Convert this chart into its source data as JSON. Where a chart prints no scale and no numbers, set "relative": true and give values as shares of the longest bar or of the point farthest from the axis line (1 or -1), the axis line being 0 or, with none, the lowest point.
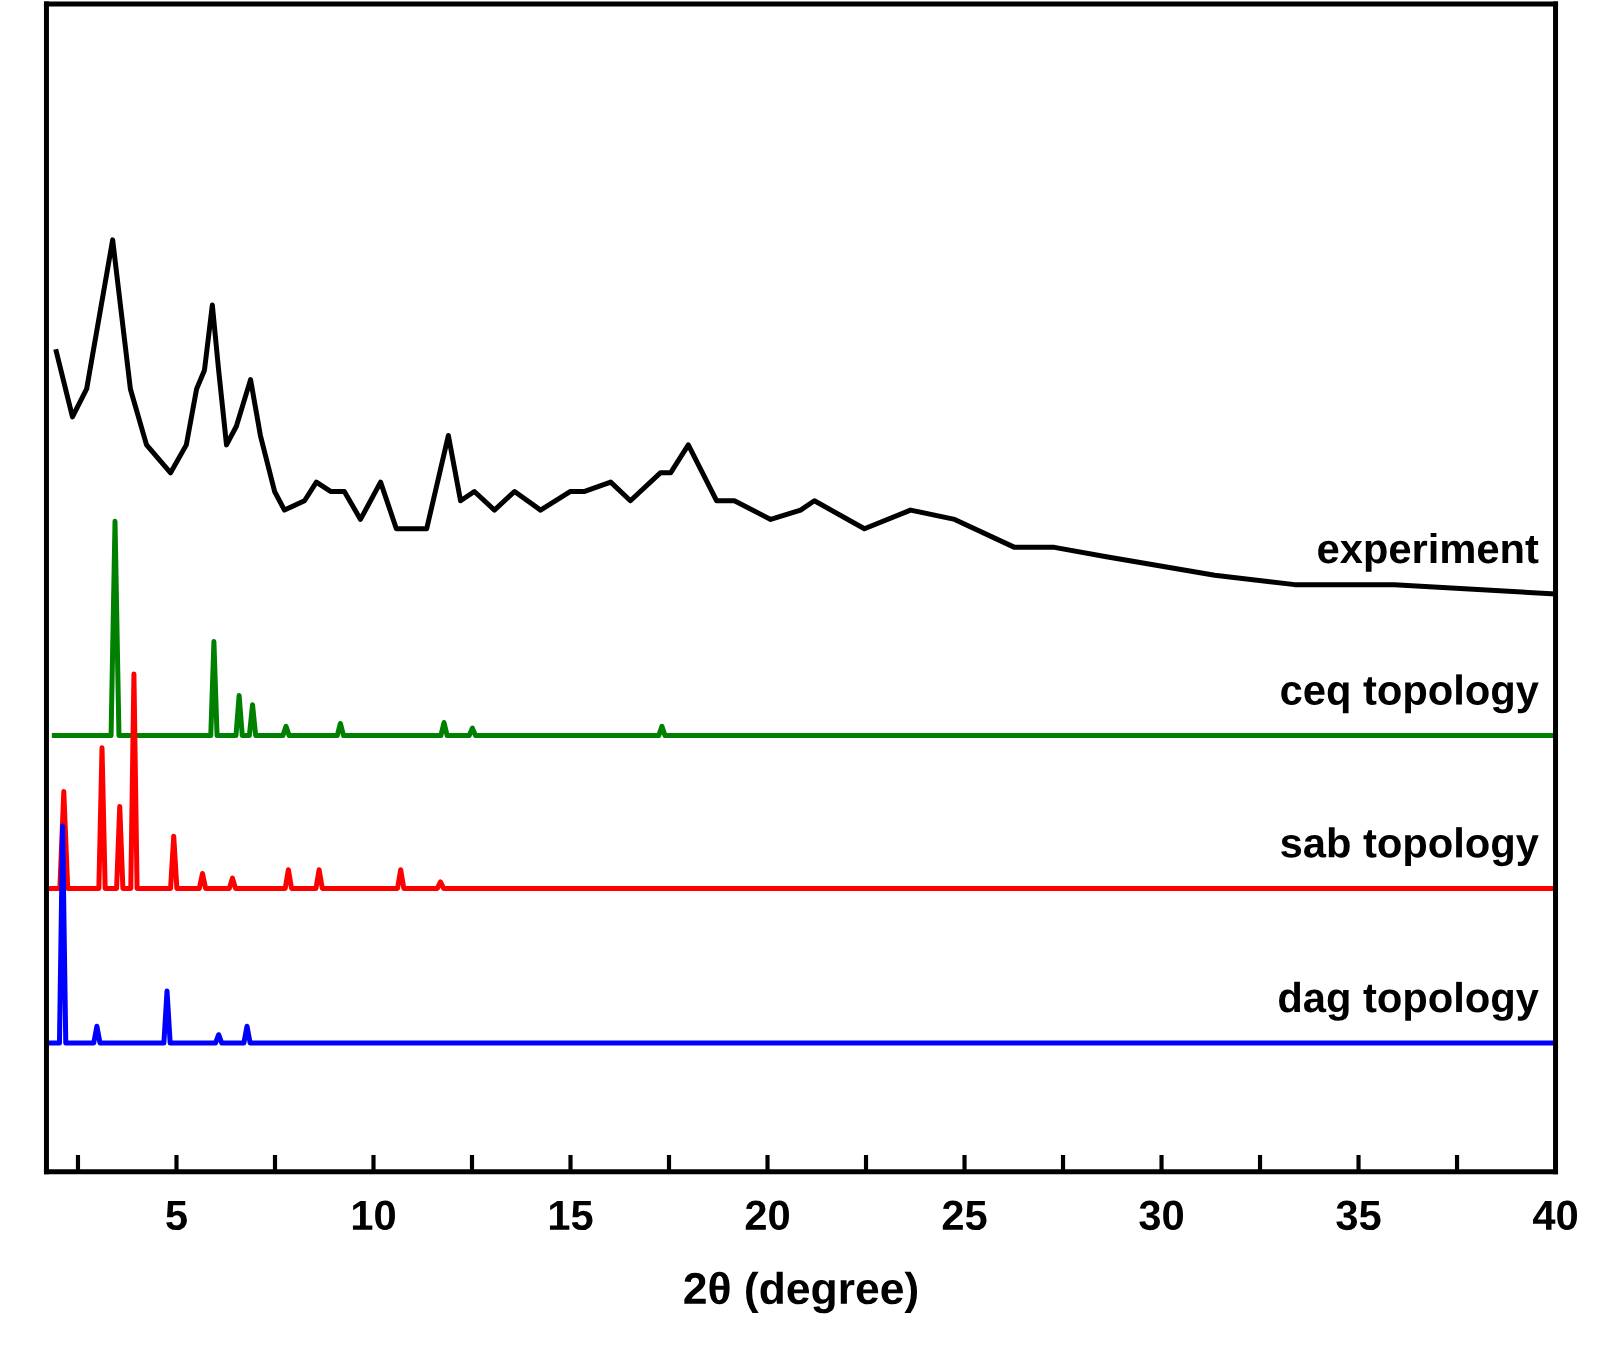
{
  "chart_data": {
    "type": "line",
    "relative": true,
    "xlabel": "2θ (degree)",
    "xlim": [
      1.7,
      40
    ],
    "xticks": [
      {
        "value": 2.5,
        "label": null
      },
      5,
      {
        "value": 7.5,
        "label": null
      },
      10,
      {
        "value": 12.5,
        "label": null
      },
      15,
      {
        "value": 17.5,
        "label": null
      },
      20,
      {
        "value": 22.5,
        "label": null
      },
      25,
      {
        "value": 27.5,
        "label": null
      },
      30,
      {
        "value": 32.5,
        "label": null
      },
      35,
      {
        "value": 37.5,
        "label": null
      },
      40
    ],
    "tick_labels": "x",
    "grid": false,
    "marker": "none",
    "line_style": "solid",
    "series": [
      {
        "name": "experiment",
        "color": "#000000",
        "x": [
          1.95,
          2.36,
          2.72,
          3.38,
          3.83,
          4.24,
          4.85,
          5.25,
          5.51,
          5.71,
          5.91,
          6.07,
          6.27,
          6.52,
          6.88,
          7.13,
          7.49,
          7.74,
          8.25,
          8.55,
          8.91,
          9.26,
          9.67,
          10.18,
          10.58,
          11.35,
          11.9,
          12.21,
          12.56,
          13.07,
          13.58,
          14.24,
          15.0,
          15.36,
          16.02,
          16.52,
          17.28,
          17.54,
          17.99,
          18.71,
          19.16,
          20.08,
          20.84,
          21.19,
          22.46,
          23.63,
          24.75,
          26.27,
          27.28,
          28.6,
          31.35,
          33.38,
          35.91,
          40
        ],
        "values": [
          0.88,
          0.81,
          0.84,
          1.0,
          0.84,
          0.78,
          0.75,
          0.78,
          0.84,
          0.86,
          0.93,
          0.86,
          0.78,
          0.8,
          0.85,
          0.79,
          0.73,
          0.71,
          0.72,
          0.74,
          0.73,
          0.73,
          0.7,
          0.74,
          0.69,
          0.69,
          0.79,
          0.72,
          0.73,
          0.71,
          0.73,
          0.71,
          0.73,
          0.73,
          0.74,
          0.72,
          0.75,
          0.75,
          0.78,
          0.72,
          0.72,
          0.7,
          0.71,
          0.72,
          0.69,
          0.71,
          0.7,
          0.67,
          0.67,
          0.66,
          0.64,
          0.63,
          0.63,
          0.62
        ]
      },
      {
        "name": "ceq topology",
        "color": "#008000",
        "x": [
          1.9,
          3.34,
          3.44,
          3.54,
          5.87,
          5.95,
          6.03,
          6.51,
          6.59,
          6.67,
          6.85,
          6.93,
          7.01,
          7.7,
          7.78,
          7.86,
          9.08,
          9.16,
          9.24,
          11.71,
          11.79,
          11.87,
          12.43,
          12.51,
          12.59,
          17.24,
          17.32,
          17.4,
          40
        ],
        "values": [
          0.468,
          0.468,
          0.698,
          0.468,
          0.468,
          0.569,
          0.468,
          0.468,
          0.511,
          0.468,
          0.468,
          0.501,
          0.468,
          0.468,
          0.478,
          0.468,
          0.468,
          0.481,
          0.468,
          0.468,
          0.482,
          0.468,
          0.468,
          0.476,
          0.468,
          0.468,
          0.478,
          0.468,
          0.468
        ]
      },
      {
        "name": "sab topology",
        "color": "#ff0000",
        "x": [
          1.8,
          2.04,
          2.14,
          2.24,
          3.03,
          3.11,
          3.19,
          3.48,
          3.56,
          3.64,
          3.84,
          3.92,
          4.0,
          4.85,
          4.93,
          5.01,
          5.58,
          5.66,
          5.74,
          6.34,
          6.42,
          6.5,
          7.76,
          7.84,
          7.92,
          8.54,
          8.62,
          8.7,
          10.61,
          10.69,
          10.77,
          11.62,
          11.7,
          11.78,
          40
        ],
        "values": [
          0.304,
          0.304,
          0.408,
          0.304,
          0.304,
          0.455,
          0.304,
          0.304,
          0.392,
          0.304,
          0.304,
          0.534,
          0.304,
          0.304,
          0.36,
          0.304,
          0.304,
          0.32,
          0.304,
          0.304,
          0.315,
          0.304,
          0.304,
          0.324,
          0.304,
          0.304,
          0.324,
          0.304,
          0.304,
          0.324,
          0.304,
          0.304,
          0.311,
          0.304,
          0.304
        ]
      },
      {
        "name": "dag topology",
        "color": "#0000ff",
        "x": [
          1.75,
          2.03,
          2.11,
          2.19,
          2.9,
          2.98,
          3.06,
          4.68,
          4.76,
          4.84,
          5.99,
          6.07,
          6.15,
          6.71,
          6.79,
          6.87,
          40
        ],
        "values": [
          0.138,
          0.138,
          0.371,
          0.138,
          0.138,
          0.156,
          0.138,
          0.138,
          0.194,
          0.138,
          0.138,
          0.147,
          0.138,
          0.138,
          0.156,
          0.138,
          0.138
        ]
      }
    ]
  }
}
